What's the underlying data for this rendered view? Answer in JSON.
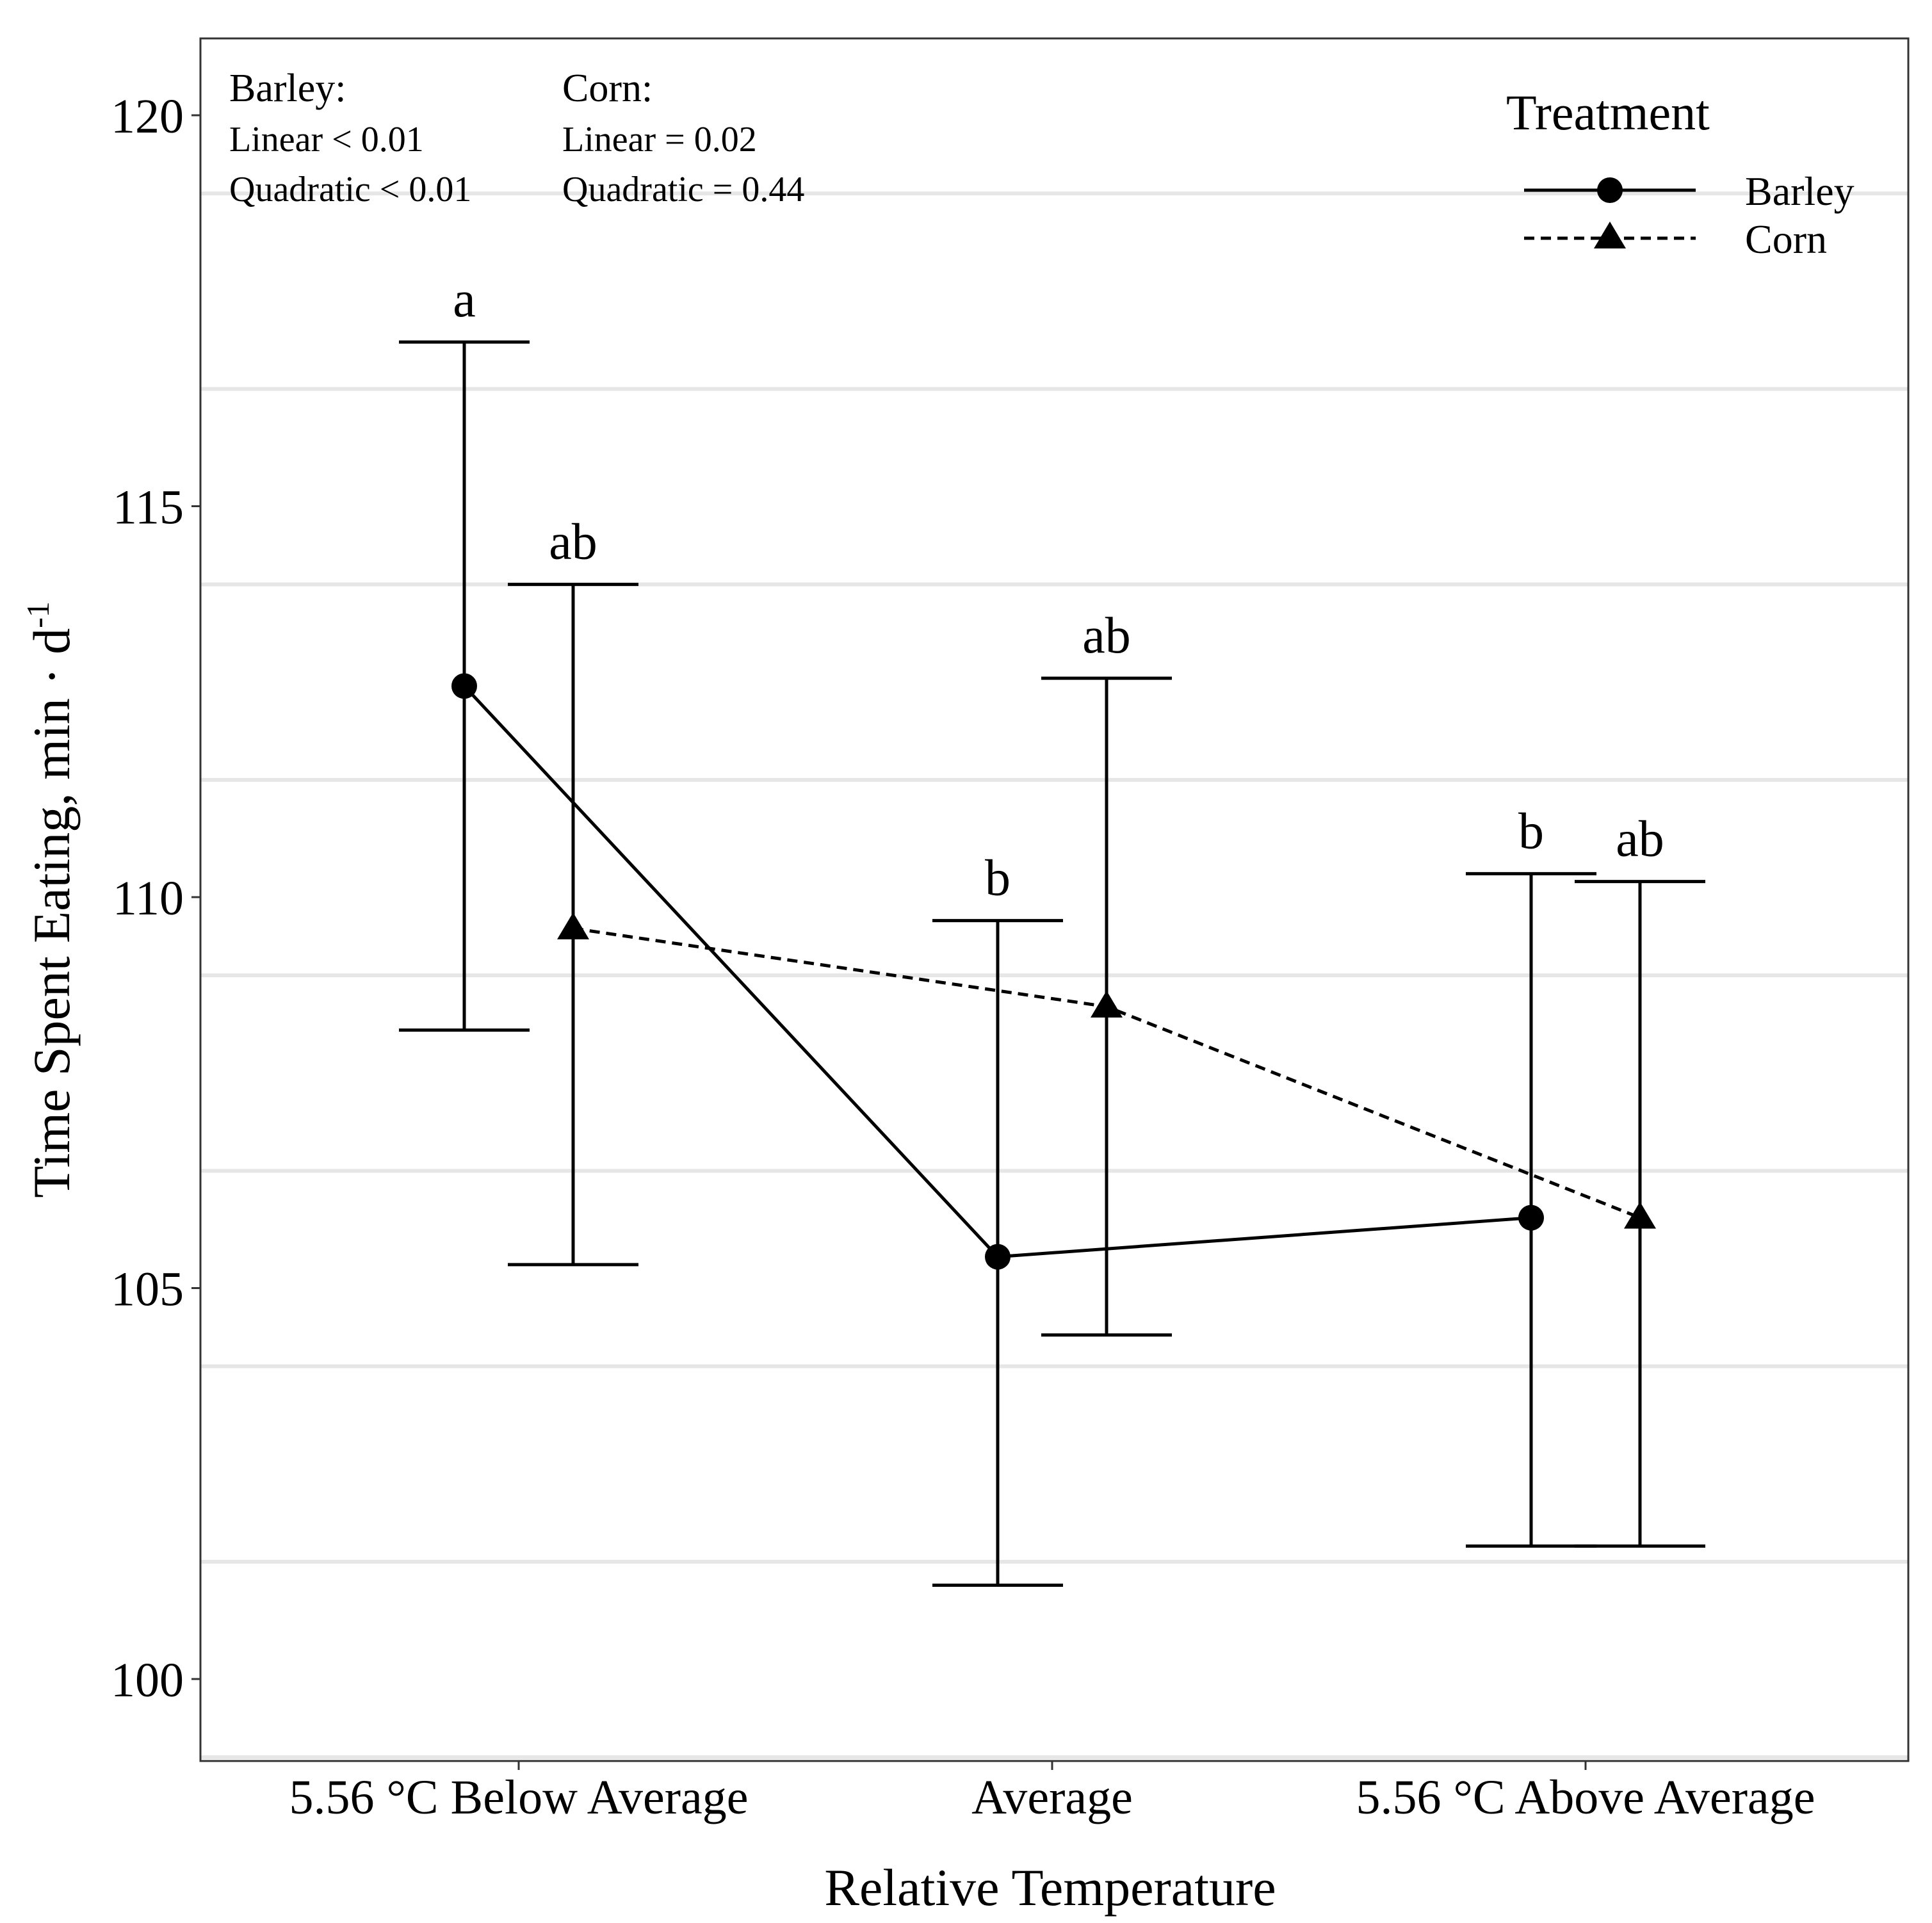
{
  "chart_data": {
    "type": "line",
    "title": "",
    "xlabel": "Relative Temperature",
    "ylabel_main": "Time Spent Eating, min · d",
    "ylabel_sup": "-1",
    "ylim": [
      99,
      121
    ],
    "yticks": [
      100,
      105,
      110,
      115,
      120
    ],
    "grid": true,
    "categories": [
      "5.56 °C Below Average",
      "Average",
      "5.56 °C Above Average"
    ],
    "series": [
      {
        "name": "Barley",
        "marker": "circle",
        "linestyle": "solid",
        "values": [
          112.7,
          105.4,
          105.9
        ],
        "error_low": [
          108.3,
          101.2,
          101.7
        ],
        "error_high": [
          117.1,
          109.7,
          110.3
        ],
        "letters": [
          "a",
          "b",
          "b"
        ]
      },
      {
        "name": "Corn",
        "marker": "triangle",
        "linestyle": "dashed",
        "values": [
          109.6,
          108.6,
          105.9
        ],
        "error_low": [
          105.3,
          104.4,
          101.7
        ],
        "error_high": [
          114.0,
          112.8,
          110.2
        ],
        "letters": [
          "ab",
          "ab",
          "ab"
        ]
      }
    ],
    "legend": {
      "title": "Treatment",
      "position": "top-right",
      "entries": [
        "Barley",
        "Corn"
      ]
    },
    "annotations": {
      "barley": {
        "heading": "Barley:",
        "line1": "Linear < 0.01",
        "line2": "Quadratic < 0.01"
      },
      "corn": {
        "heading": "Corn:",
        "line1": "Linear = 0.02",
        "line2": "Quadratic = 0.44"
      }
    }
  },
  "colors": {
    "line": "#000000",
    "grid": "#e6e6e6",
    "panel_border": "#333333",
    "background": "#ffffff"
  }
}
